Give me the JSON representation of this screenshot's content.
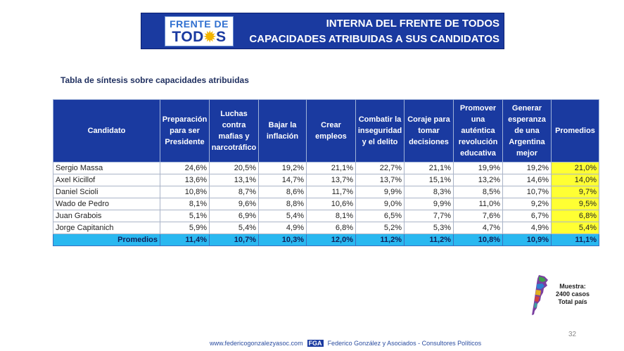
{
  "header": {
    "logo_top": "FRENTE DE",
    "logo_bottom_left": "TOD",
    "logo_bottom_right": "S",
    "title_line1": "INTERNA DEL FRENTE DE TODOS",
    "title_line2": "CAPACIDADES ATRIBUIDAS A SUS CANDIDATOS"
  },
  "subtitle": "Tabla de síntesis sobre capacidades atribuidas",
  "table": {
    "columns": [
      "Candidato",
      "Preparación para ser Presidente",
      "Luchas contra mafias y narcotráfico",
      "Bajar la inflación",
      "Crear empleos",
      "Combatir la inseguridad y el delito",
      "Coraje para tomar decisiones",
      "Promover una auténtica revolución educativa",
      "Generar esperanza de una Argentina mejor",
      "Promedios"
    ],
    "rows": [
      [
        "Sergio Massa",
        "24,6%",
        "20,5%",
        "19,2%",
        "21,1%",
        "22,7%",
        "21,1%",
        "19,9%",
        "19,2%",
        "21,0%"
      ],
      [
        "Axel Kicillof",
        "13,6%",
        "13,1%",
        "14,7%",
        "13,7%",
        "13,7%",
        "15,1%",
        "13,2%",
        "14,6%",
        "14,0%"
      ],
      [
        "Daniel Scioli",
        "10,8%",
        "8,7%",
        "8,6%",
        "11,7%",
        "9,9%",
        "8,3%",
        "8,5%",
        "10,7%",
        "9,7%"
      ],
      [
        "Wado de Pedro",
        "8,1%",
        "9,6%",
        "8,8%",
        "10,6%",
        "9,0%",
        "9,9%",
        "11,0%",
        "9,2%",
        "9,5%"
      ],
      [
        "Juan Grabois",
        "5,1%",
        "6,9%",
        "5,4%",
        "8,1%",
        "6,5%",
        "7,7%",
        "7,6%",
        "6,7%",
        "6,8%"
      ],
      [
        "Jorge Capitanich",
        "5,9%",
        "5,4%",
        "4,9%",
        "6,8%",
        "5,2%",
        "5,3%",
        "4,7%",
        "4,9%",
        "5,4%"
      ]
    ],
    "averages": [
      "Promedios",
      "11,4%",
      "10,7%",
      "10,3%",
      "12,0%",
      "11,2%",
      "11,2%",
      "10,8%",
      "10,9%",
      "11,1%"
    ]
  },
  "sample": {
    "line1": "Muestra:",
    "line2": "2400 casos",
    "line3": "Total país"
  },
  "page_number": "32",
  "footer": {
    "website": "www.federicogonzalezyasoc.com",
    "badge": "FGA",
    "company": "Federico González y Asociados - Consultores Políticos"
  },
  "colors": {
    "header_blue": "#1a3aa0",
    "highlight_yellow": "#ffff33",
    "averages_cyan": "#2ab8f0"
  }
}
